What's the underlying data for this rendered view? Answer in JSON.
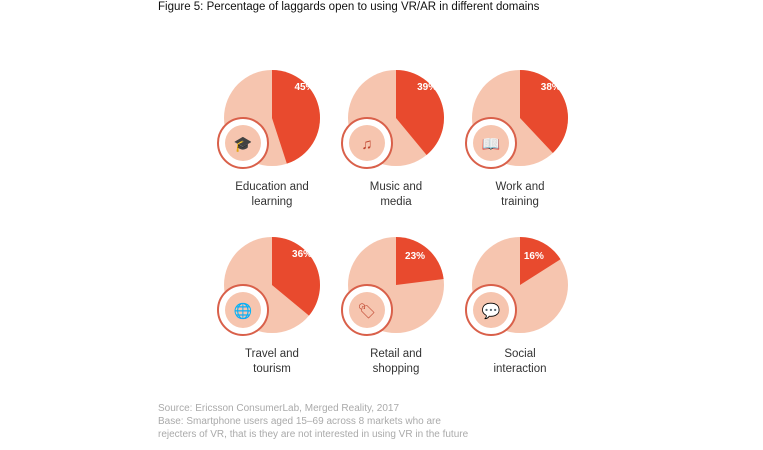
{
  "chart_data": {
    "type": "pie",
    "title": "Figure 5: Percentage of laggards open to using VR/AR in different domains",
    "colors": {
      "highlight": "#e84a2e",
      "rest": "#f6c5af",
      "icon_ring": "#d9604a"
    },
    "items": [
      {
        "label_lines": [
          "Education and",
          "learning"
        ],
        "value": 45,
        "value_label": "45%",
        "icon": "graduation-cap-icon"
      },
      {
        "label_lines": [
          "Music and",
          "media"
        ],
        "value": 39,
        "value_label": "39%",
        "icon": "music-note-icon"
      },
      {
        "label_lines": [
          "Work and",
          "training"
        ],
        "value": 38,
        "value_label": "38%",
        "icon": "book-icon"
      },
      {
        "label_lines": [
          "Travel and",
          "tourism"
        ],
        "value": 36,
        "value_label": "36%",
        "icon": "globe-icon"
      },
      {
        "label_lines": [
          "Retail and",
          "shopping"
        ],
        "value": 23,
        "value_label": "23%",
        "icon": "price-tag-icon"
      },
      {
        "label_lines": [
          "Social",
          "interaction"
        ],
        "value": 16,
        "value_label": "16%",
        "icon": "chat-bubbles-icon"
      }
    ]
  },
  "source": {
    "line1": "Source: Ericsson ConsumerLab, Merged Reality, 2017",
    "line2": "Base: Smartphone users aged 15–69 across 8 markets who are",
    "line3": "rejecters of VR, that is they are not interested in using VR in the future"
  }
}
